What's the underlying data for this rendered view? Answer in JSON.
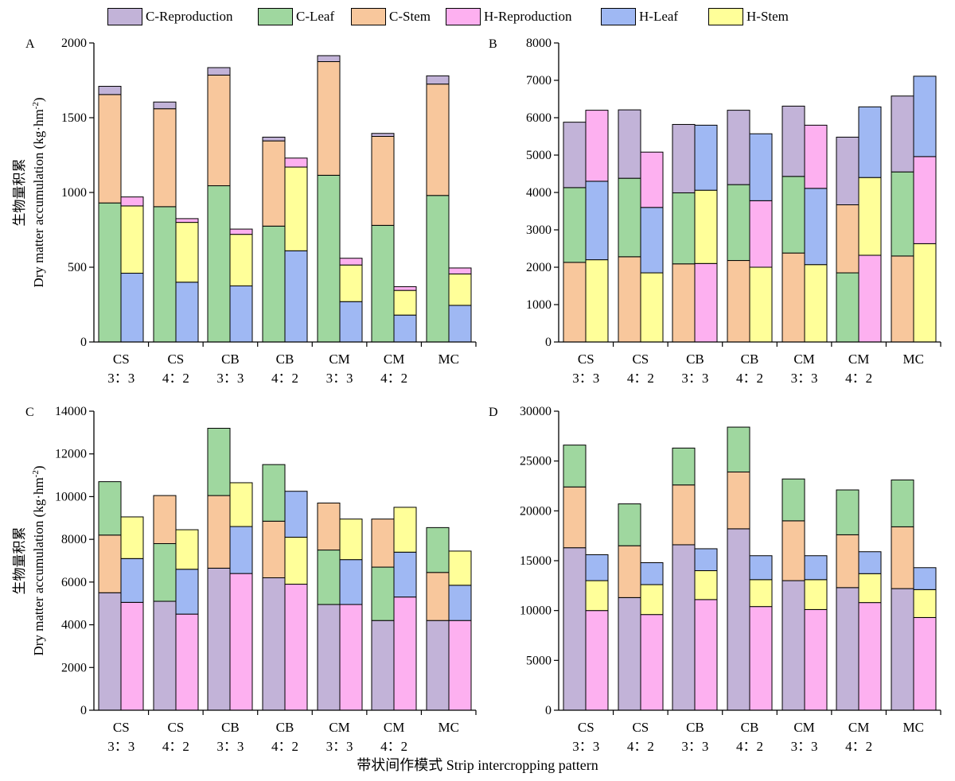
{
  "legend": [
    {
      "name": "C-Reproduction",
      "color": "#c2b3d8"
    },
    {
      "name": "C-Leaf",
      "color": "#9fd79f"
    },
    {
      "name": "C-Stem",
      "color": "#f8c79c"
    },
    {
      "name": "H-Reproduction",
      "color": "#fdb0f0"
    },
    {
      "name": "H-Leaf",
      "color": "#9fb8f3"
    },
    {
      "name": "H-Stem",
      "color": "#ffff99"
    }
  ],
  "x_axis_title": "带状间作模式 Strip intercropping pattern",
  "categories": [
    {
      "line1": "CS",
      "line2": "3：3"
    },
    {
      "line1": "CS",
      "line2": "4：2"
    },
    {
      "line1": "CB",
      "line2": "3：3"
    },
    {
      "line1": "CB",
      "line2": "4：2"
    },
    {
      "line1": "CM",
      "line2": "3：3"
    },
    {
      "line1": "CM",
      "line2": "4：2"
    },
    {
      "line1": "MC",
      "line2": ""
    }
  ],
  "chart_data": [
    {
      "panel": "A",
      "type": "bar",
      "stacked": true,
      "ylabel_cn": "生物量积累",
      "ylabel": "Dry matter accumulation (kg·hm",
      "ylabel_sup": "-2",
      "ylabel_end": ")",
      "ylim": [
        0,
        2000
      ],
      "yticks": [
        0,
        500,
        1000,
        1500,
        2000
      ],
      "bars": [
        [
          {
            "name": "C-Leaf",
            "value": 930
          },
          {
            "name": "C-Stem",
            "value": 725
          },
          {
            "name": "C-Reproduction",
            "value": 55
          }
        ],
        [
          {
            "name": "H-Leaf",
            "value": 460
          },
          {
            "name": "H-Stem",
            "value": 450
          },
          {
            "name": "H-Reproduction",
            "value": 60
          }
        ],
        [
          {
            "name": "C-Leaf",
            "value": 905
          },
          {
            "name": "C-Stem",
            "value": 655
          },
          {
            "name": "C-Reproduction",
            "value": 45
          }
        ],
        [
          {
            "name": "H-Leaf",
            "value": 400
          },
          {
            "name": "H-Stem",
            "value": 400
          },
          {
            "name": "H-Reproduction",
            "value": 25
          }
        ],
        [
          {
            "name": "C-Leaf",
            "value": 1045
          },
          {
            "name": "C-Stem",
            "value": 740
          },
          {
            "name": "C-Reproduction",
            "value": 50
          }
        ],
        [
          {
            "name": "H-Leaf",
            "value": 375
          },
          {
            "name": "H-Stem",
            "value": 345
          },
          {
            "name": "H-Reproduction",
            "value": 35
          }
        ],
        [
          {
            "name": "C-Leaf",
            "value": 775
          },
          {
            "name": "C-Stem",
            "value": 570
          },
          {
            "name": "C-Reproduction",
            "value": 25
          }
        ],
        [
          {
            "name": "H-Leaf",
            "value": 610
          },
          {
            "name": "H-Stem",
            "value": 560
          },
          {
            "name": "H-Reproduction",
            "value": 60
          }
        ],
        [
          {
            "name": "C-Leaf",
            "value": 1115
          },
          {
            "name": "C-Stem",
            "value": 760
          },
          {
            "name": "C-Reproduction",
            "value": 40
          }
        ],
        [
          {
            "name": "H-Leaf",
            "value": 270
          },
          {
            "name": "H-Stem",
            "value": 245
          },
          {
            "name": "H-Reproduction",
            "value": 45
          }
        ],
        [
          {
            "name": "C-Leaf",
            "value": 780
          },
          {
            "name": "C-Stem",
            "value": 595
          },
          {
            "name": "C-Reproduction",
            "value": 20
          }
        ],
        [
          {
            "name": "H-Leaf",
            "value": 180
          },
          {
            "name": "H-Stem",
            "value": 165
          },
          {
            "name": "H-Reproduction",
            "value": 25
          }
        ],
        [
          {
            "name": "C-Leaf",
            "value": 980
          },
          {
            "name": "C-Stem",
            "value": 745
          },
          {
            "name": "C-Reproduction",
            "value": 55
          }
        ],
        [
          {
            "name": "H-Leaf",
            "value": 245
          },
          {
            "name": "H-Stem",
            "value": 210
          },
          {
            "name": "H-Reproduction",
            "value": 40
          }
        ]
      ]
    },
    {
      "panel": "B",
      "type": "bar",
      "stacked": true,
      "ylim": [
        0,
        8000
      ],
      "yticks": [
        0,
        1000,
        2000,
        3000,
        4000,
        5000,
        6000,
        7000,
        8000
      ],
      "bars": [
        [
          {
            "name": "C-Stem",
            "value": 2130
          },
          {
            "name": "C-Leaf",
            "value": 2000
          },
          {
            "name": "C-Reproduction",
            "value": 1750
          }
        ],
        [
          {
            "name": "H-Stem",
            "value": 2200
          },
          {
            "name": "H-Leaf",
            "value": 2100
          },
          {
            "name": "H-Reproduction",
            "value": 1900
          }
        ],
        [
          {
            "name": "C-Stem",
            "value": 2280
          },
          {
            "name": "C-Leaf",
            "value": 2100
          },
          {
            "name": "C-Reproduction",
            "value": 1830
          }
        ],
        [
          {
            "name": "H-Stem",
            "value": 1850
          },
          {
            "name": "H-Leaf",
            "value": 1750
          },
          {
            "name": "H-Reproduction",
            "value": 1480
          }
        ],
        [
          {
            "name": "C-Stem",
            "value": 2090
          },
          {
            "name": "C-Leaf",
            "value": 1900
          },
          {
            "name": "C-Reproduction",
            "value": 1830
          }
        ],
        [
          {
            "name": "H-Reproduction",
            "value": 2100
          },
          {
            "name": "H-Stem",
            "value": 1960
          },
          {
            "name": "H-Leaf",
            "value": 1740
          }
        ],
        [
          {
            "name": "C-Stem",
            "value": 2180
          },
          {
            "name": "C-Leaf",
            "value": 2030
          },
          {
            "name": "C-Reproduction",
            "value": 1990
          }
        ],
        [
          {
            "name": "H-Stem",
            "value": 2000
          },
          {
            "name": "H-Reproduction",
            "value": 1780
          },
          {
            "name": "H-Leaf",
            "value": 1790
          }
        ],
        [
          {
            "name": "C-Stem",
            "value": 2380
          },
          {
            "name": "C-Leaf",
            "value": 2050
          },
          {
            "name": "C-Reproduction",
            "value": 1880
          }
        ],
        [
          {
            "name": "H-Stem",
            "value": 2070
          },
          {
            "name": "H-Leaf",
            "value": 2040
          },
          {
            "name": "H-Reproduction",
            "value": 1690
          }
        ],
        [
          {
            "name": "C-Leaf",
            "value": 1850
          },
          {
            "name": "C-Stem",
            "value": 1820
          },
          {
            "name": "C-Reproduction",
            "value": 1810
          }
        ],
        [
          {
            "name": "H-Reproduction",
            "value": 2320
          },
          {
            "name": "H-Stem",
            "value": 2080
          },
          {
            "name": "H-Leaf",
            "value": 1890
          }
        ],
        [
          {
            "name": "C-Stem",
            "value": 2300
          },
          {
            "name": "C-Leaf",
            "value": 2250
          },
          {
            "name": "C-Reproduction",
            "value": 2030
          }
        ],
        [
          {
            "name": "H-Stem",
            "value": 2630
          },
          {
            "name": "H-Reproduction",
            "value": 2330
          },
          {
            "name": "H-Leaf",
            "value": 2150
          }
        ]
      ]
    },
    {
      "panel": "C",
      "type": "bar",
      "stacked": true,
      "ylabel_cn": "生物量积累",
      "ylabel": "Dry matter accumulation (kg·hm",
      "ylabel_sup": "-2",
      "ylabel_end": ")",
      "ylim": [
        0,
        14000
      ],
      "yticks": [
        0,
        2000,
        4000,
        6000,
        8000,
        10000,
        12000,
        14000
      ],
      "bars": [
        [
          {
            "name": "C-Reproduction",
            "value": 5500
          },
          {
            "name": "C-Stem",
            "value": 2700
          },
          {
            "name": "C-Leaf",
            "value": 2500
          }
        ],
        [
          {
            "name": "H-Reproduction",
            "value": 5050
          },
          {
            "name": "H-Leaf",
            "value": 2050
          },
          {
            "name": "H-Stem",
            "value": 1950
          }
        ],
        [
          {
            "name": "C-Reproduction",
            "value": 5100
          },
          {
            "name": "C-Leaf",
            "value": 2700
          },
          {
            "name": "C-Stem",
            "value": 2250
          }
        ],
        [
          {
            "name": "H-Reproduction",
            "value": 4500
          },
          {
            "name": "H-Leaf",
            "value": 2100
          },
          {
            "name": "H-Stem",
            "value": 1850
          }
        ],
        [
          {
            "name": "C-Reproduction",
            "value": 6650
          },
          {
            "name": "C-Stem",
            "value": 3400
          },
          {
            "name": "C-Leaf",
            "value": 3150
          }
        ],
        [
          {
            "name": "H-Reproduction",
            "value": 6400
          },
          {
            "name": "H-Leaf",
            "value": 2200
          },
          {
            "name": "H-Stem",
            "value": 2050
          }
        ],
        [
          {
            "name": "C-Reproduction",
            "value": 6200
          },
          {
            "name": "C-Stem",
            "value": 2650
          },
          {
            "name": "C-Leaf",
            "value": 2650
          }
        ],
        [
          {
            "name": "H-Reproduction",
            "value": 5900
          },
          {
            "name": "H-Stem",
            "value": 2200
          },
          {
            "name": "H-Leaf",
            "value": 2150
          }
        ],
        [
          {
            "name": "C-Reproduction",
            "value": 4950
          },
          {
            "name": "C-Leaf",
            "value": 2550
          },
          {
            "name": "C-Stem",
            "value": 2200
          }
        ],
        [
          {
            "name": "H-Reproduction",
            "value": 4950
          },
          {
            "name": "H-Leaf",
            "value": 2100
          },
          {
            "name": "H-Stem",
            "value": 1900
          }
        ],
        [
          {
            "name": "C-Reproduction",
            "value": 4200
          },
          {
            "name": "C-Leaf",
            "value": 2500
          },
          {
            "name": "C-Stem",
            "value": 2250
          }
        ],
        [
          {
            "name": "H-Reproduction",
            "value": 5300
          },
          {
            "name": "H-Leaf",
            "value": 2100
          },
          {
            "name": "H-Stem",
            "value": 2100
          }
        ],
        [
          {
            "name": "C-Reproduction",
            "value": 4200
          },
          {
            "name": "C-Stem",
            "value": 2250
          },
          {
            "name": "C-Leaf",
            "value": 2100
          }
        ],
        [
          {
            "name": "H-Reproduction",
            "value": 4200
          },
          {
            "name": "H-Leaf",
            "value": 1650
          },
          {
            "name": "H-Stem",
            "value": 1600
          }
        ]
      ]
    },
    {
      "panel": "D",
      "type": "bar",
      "stacked": true,
      "ylim": [
        0,
        30000
      ],
      "yticks": [
        0,
        5000,
        10000,
        15000,
        20000,
        25000,
        30000
      ],
      "bars": [
        [
          {
            "name": "C-Reproduction",
            "value": 16300
          },
          {
            "name": "C-Stem",
            "value": 6100
          },
          {
            "name": "C-Leaf",
            "value": 4200
          }
        ],
        [
          {
            "name": "H-Reproduction",
            "value": 10000
          },
          {
            "name": "H-Stem",
            "value": 3000
          },
          {
            "name": "H-Leaf",
            "value": 2600
          }
        ],
        [
          {
            "name": "C-Reproduction",
            "value": 11300
          },
          {
            "name": "C-Stem",
            "value": 5200
          },
          {
            "name": "C-Leaf",
            "value": 4200
          }
        ],
        [
          {
            "name": "H-Reproduction",
            "value": 9600
          },
          {
            "name": "H-Stem",
            "value": 3000
          },
          {
            "name": "H-Leaf",
            "value": 2200
          }
        ],
        [
          {
            "name": "C-Reproduction",
            "value": 16600
          },
          {
            "name": "C-Stem",
            "value": 6000
          },
          {
            "name": "C-Leaf",
            "value": 3700
          }
        ],
        [
          {
            "name": "H-Reproduction",
            "value": 11100
          },
          {
            "name": "H-Stem",
            "value": 2900
          },
          {
            "name": "H-Leaf",
            "value": 2200
          }
        ],
        [
          {
            "name": "C-Reproduction",
            "value": 18200
          },
          {
            "name": "C-Stem",
            "value": 5700
          },
          {
            "name": "C-Leaf",
            "value": 4500
          }
        ],
        [
          {
            "name": "H-Reproduction",
            "value": 10400
          },
          {
            "name": "H-Stem",
            "value": 2700
          },
          {
            "name": "H-Leaf",
            "value": 2400
          }
        ],
        [
          {
            "name": "C-Reproduction",
            "value": 13000
          },
          {
            "name": "C-Stem",
            "value": 6000
          },
          {
            "name": "C-Leaf",
            "value": 4200
          }
        ],
        [
          {
            "name": "H-Reproduction",
            "value": 10100
          },
          {
            "name": "H-Stem",
            "value": 3000
          },
          {
            "name": "H-Leaf",
            "value": 2400
          }
        ],
        [
          {
            "name": "C-Reproduction",
            "value": 12300
          },
          {
            "name": "C-Stem",
            "value": 5300
          },
          {
            "name": "C-Leaf",
            "value": 4500
          }
        ],
        [
          {
            "name": "H-Reproduction",
            "value": 10800
          },
          {
            "name": "H-Stem",
            "value": 2900
          },
          {
            "name": "H-Leaf",
            "value": 2200
          }
        ],
        [
          {
            "name": "C-Reproduction",
            "value": 12200
          },
          {
            "name": "C-Stem",
            "value": 6200
          },
          {
            "name": "C-Leaf",
            "value": 4700
          }
        ],
        [
          {
            "name": "H-Reproduction",
            "value": 9300
          },
          {
            "name": "H-Stem",
            "value": 2800
          },
          {
            "name": "H-Leaf",
            "value": 2200
          }
        ]
      ]
    }
  ]
}
